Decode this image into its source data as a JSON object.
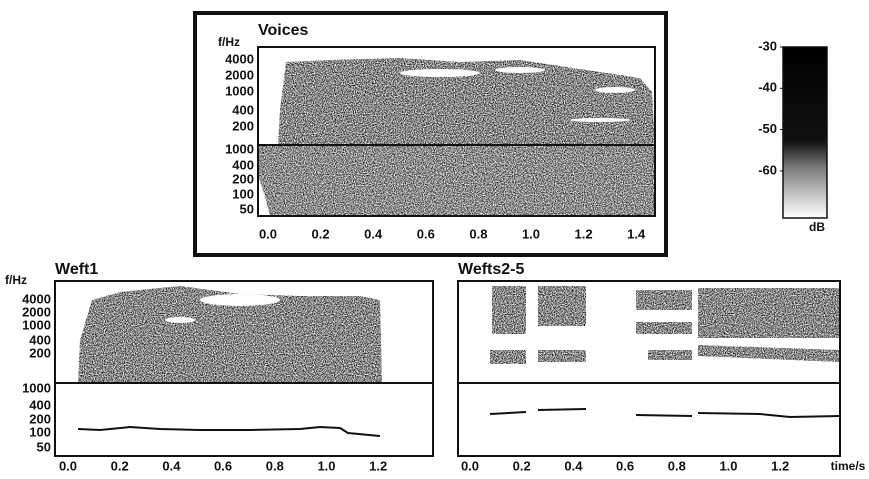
{
  "panels": [
    {
      "title": "Voices",
      "y_label": "f/Hz",
      "y_ticks_upper": [
        "4000",
        "2000",
        "1000",
        "400",
        "200"
      ],
      "y_ticks_lower": [
        "1000",
        "400",
        "200",
        "100",
        "50"
      ],
      "x_ticks": [
        "0.0",
        "0.2",
        "0.4",
        "0.6",
        "0.8",
        "1.0",
        "1.2",
        "1.4"
      ]
    },
    {
      "title": "Weft1",
      "y_label": "f/Hz",
      "y_ticks_upper": [
        "4000",
        "2000",
        "1000",
        "400",
        "200"
      ],
      "y_ticks_lower": [
        "1000",
        "400",
        "200",
        "100",
        "50"
      ],
      "x_ticks": [
        "0.0",
        "0.2",
        "0.4",
        "0.6",
        "0.8",
        "1.0",
        "1.2"
      ]
    },
    {
      "title": "Wefts2-5",
      "x_ticks": [
        "0.0",
        "0.2",
        "0.4",
        "0.6",
        "0.8",
        "1.0",
        "1.2"
      ],
      "x_label": "time/s"
    }
  ],
  "colorbar": {
    "ticks": [
      "-30",
      "-40",
      "-50",
      "-60"
    ],
    "unit": "dB"
  }
}
